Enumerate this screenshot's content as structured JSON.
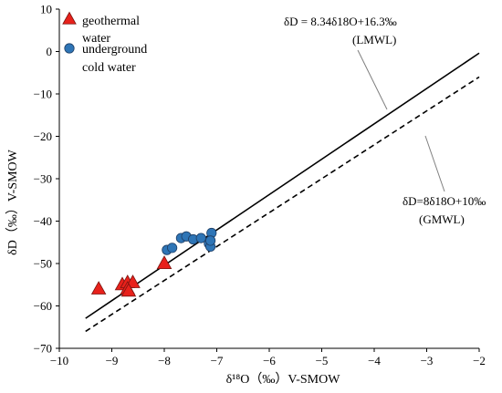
{
  "chart_data": {
    "type": "scatter",
    "xlabel": "δ¹⁸O（‰）V-SMOW",
    "ylabel": "δD（‰）V-SMOW",
    "xlim": [
      -10,
      -2
    ],
    "ylim": [
      -70,
      10
    ],
    "xticks": [
      -10,
      -9,
      -8,
      -7,
      -6,
      -5,
      -4,
      -3,
      -2
    ],
    "yticks": [
      10,
      0,
      -10,
      -20,
      -30,
      -40,
      -50,
      -60,
      -70
    ],
    "xtick_labels": [
      "−10",
      "−9",
      "−8",
      "−7",
      "−6",
      "−5",
      "−4",
      "−3",
      "−2"
    ],
    "ytick_labels": [
      "10",
      "0",
      "−10",
      "−20",
      "−30",
      "−40",
      "−50",
      "−60",
      "−70"
    ],
    "grid": false,
    "legend_position": "top-left",
    "series": [
      {
        "name": "geothermal water",
        "legend_lines": [
          "geothermal",
          "water"
        ],
        "marker": "triangle",
        "color": "#e8211b",
        "points": [
          {
            "x": -9.25,
            "y": -56
          },
          {
            "x": -8.8,
            "y": -55
          },
          {
            "x": -8.7,
            "y": -54.5
          },
          {
            "x": -8.6,
            "y": -54.5
          },
          {
            "x": -8.7,
            "y": -56
          },
          {
            "x": -8.68,
            "y": -56.5
          },
          {
            "x": -8.0,
            "y": -50
          }
        ]
      },
      {
        "name": "underground cold water",
        "legend_lines": [
          "underground",
          "cold water"
        ],
        "marker": "circle",
        "color": "#2e75b6",
        "points": [
          {
            "x": -7.95,
            "y": -46.8
          },
          {
            "x": -7.85,
            "y": -46.3
          },
          {
            "x": -7.68,
            "y": -44
          },
          {
            "x": -7.58,
            "y": -43.6
          },
          {
            "x": -7.45,
            "y": -44.3
          },
          {
            "x": -7.3,
            "y": -44
          },
          {
            "x": -7.15,
            "y": -45.3
          },
          {
            "x": -7.12,
            "y": -46
          },
          {
            "x": -7.1,
            "y": -42.8
          },
          {
            "x": -7.12,
            "y": -44.6
          }
        ]
      }
    ],
    "lines": [
      {
        "name": "LMWL",
        "equation": "δD = 8.34δ18O+16.3‰",
        "label": "(LMWL)",
        "style": "solid",
        "x_range": [
          -9.5,
          -2
        ]
      },
      {
        "name": "GMWL",
        "equation": "δD=8δ18O+10‰",
        "label": "(GMWL)",
        "style": "dashed",
        "x_range": [
          -9.5,
          -2
        ]
      }
    ]
  }
}
